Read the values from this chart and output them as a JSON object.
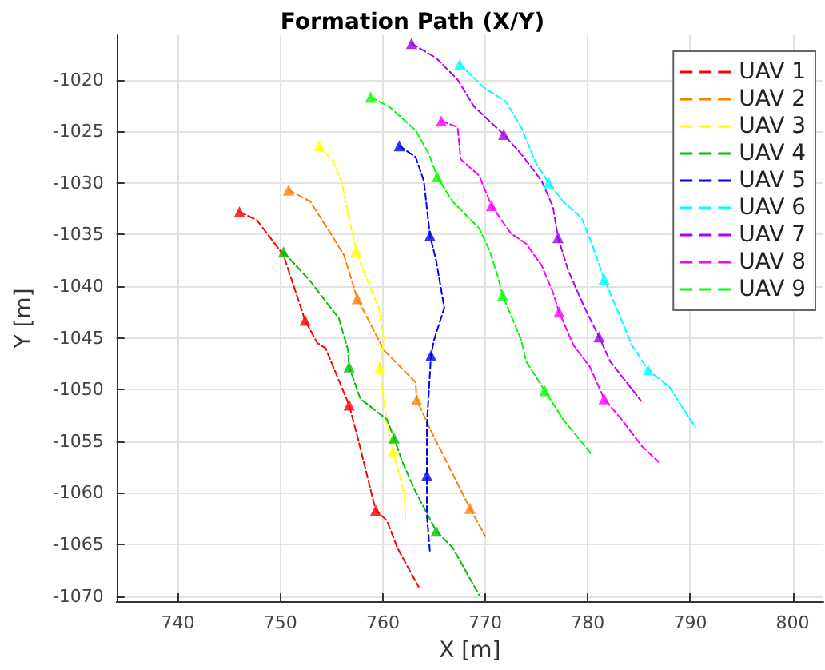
{
  "chart_data": {
    "type": "line",
    "title": "Formation Path (X/Y)",
    "xlabel": "X [m]",
    "ylabel": "Y [m]",
    "xlim": [
      734,
      803
    ],
    "xticks": [
      740,
      750,
      760,
      770,
      780,
      790,
      800
    ],
    "ylim": [
      -1070.5,
      -1015.7
    ],
    "yticks": [
      -1070,
      -1065,
      -1060,
      -1055,
      -1050,
      -1045,
      -1040,
      -1035,
      -1030,
      -1025,
      -1020
    ],
    "grid": true,
    "legend": "top right",
    "line_style": "dashed",
    "series": [
      {
        "name": "UAV 1",
        "marker": "none",
        "color": "#ff0000",
        "x": [
          746.0,
          747.7,
          750.3,
          752.4,
          753.6,
          754.4,
          756.7,
          757.5,
          759.3,
          760.4,
          761.4,
          763.2,
          763.5
        ],
        "values": [
          -1032.8,
          -1033.6,
          -1037.0,
          -1043.3,
          -1045.5,
          -1046.0,
          -1051.5,
          -1054.5,
          -1061.7,
          -1062.7,
          -1065.3,
          -1068.6,
          -1069.1
        ]
      },
      {
        "name": "UAV 2",
        "marker": "none",
        "color": "#ff8000",
        "x": [
          750.8,
          752.9,
          754.9,
          756.2,
          757.5,
          758.5,
          760.1,
          763.2,
          763.3,
          764.7,
          767.8,
          768.5,
          770.0
        ],
        "values": [
          -1030.7,
          -1031.8,
          -1034.9,
          -1037.0,
          -1041.2,
          -1043.1,
          -1046.2,
          -1049.3,
          -1051.0,
          -1054.0,
          -1060.1,
          -1061.5,
          -1064.2
        ]
      },
      {
        "name": "UAV 3",
        "marker": "none",
        "color": "#ffff00",
        "x": [
          753.8,
          755.2,
          756.0,
          756.7,
          757.4,
          758.3,
          759.6,
          760.1,
          759.7,
          760.4,
          761.0,
          762.1,
          762.2
        ],
        "values": [
          -1026.4,
          -1028.0,
          -1030.0,
          -1033.4,
          -1036.6,
          -1039.0,
          -1042.1,
          -1045.2,
          -1047.9,
          -1053.4,
          -1056.0,
          -1060.1,
          -1062.7
        ]
      },
      {
        "name": "UAV 4",
        "marker": "none",
        "color": "#00c000",
        "x": [
          750.3,
          752.9,
          754.9,
          755.7,
          756.6,
          756.7,
          757.8,
          760.4,
          761.1,
          761.9,
          763.2,
          765.2,
          766.8,
          769.4
        ],
        "values": [
          -1036.7,
          -1039.5,
          -1042.1,
          -1043.1,
          -1046.2,
          -1047.8,
          -1050.9,
          -1052.9,
          -1054.7,
          -1057.0,
          -1059.9,
          -1063.7,
          -1065.3,
          -1069.9
        ]
      },
      {
        "name": "UAV 5",
        "marker": "none",
        "color": "#0000ff",
        "x": [
          761.6,
          763.2,
          764.0,
          764.6,
          765.2,
          766.0,
          765.0,
          764.7,
          764.3,
          764.3,
          764.3,
          764.6
        ],
        "values": [
          -1026.4,
          -1027.5,
          -1029.8,
          -1035.1,
          -1037.5,
          -1042.1,
          -1045.2,
          -1046.7,
          -1053.4,
          -1058.3,
          -1062.2,
          -1065.8
        ]
      },
      {
        "name": "UAV 6",
        "marker": "none",
        "color": "#00ffff",
        "x": [
          767.5,
          769.9,
          772.0,
          773.5,
          775.0,
          776.2,
          777.6,
          779.4,
          780.4,
          781.6,
          782.8,
          784.3,
          785.9,
          788.0,
          790.0,
          790.5
        ],
        "values": [
          -1018.5,
          -1020.8,
          -1022.1,
          -1024.6,
          -1028.2,
          -1030.0,
          -1031.8,
          -1033.4,
          -1035.9,
          -1039.3,
          -1042.1,
          -1045.7,
          -1048.1,
          -1049.8,
          -1052.9,
          -1053.6
        ]
      },
      {
        "name": "UAV 7",
        "marker": "none",
        "color": "#b000ff",
        "x": [
          762.8,
          765.2,
          767.3,
          768.9,
          771.8,
          773.5,
          775.5,
          776.6,
          777.1,
          778.1,
          779.7,
          781.1,
          782.2,
          785.2
        ],
        "values": [
          -1016.5,
          -1017.9,
          -1020.0,
          -1022.6,
          -1025.3,
          -1027.2,
          -1029.8,
          -1032.3,
          -1035.3,
          -1038.5,
          -1042.1,
          -1044.9,
          -1047.3,
          -1051.1
        ]
      },
      {
        "name": "UAV 8",
        "marker": "none",
        "color": "#ff00ff",
        "x": [
          765.7,
          767.3,
          767.6,
          769.4,
          770.6,
          772.5,
          774.0,
          775.5,
          776.6,
          777.2,
          778.6,
          780.2,
          781.6,
          783.3,
          785.3,
          786.9
        ],
        "values": [
          -1024.0,
          -1024.6,
          -1027.7,
          -1029.3,
          -1032.2,
          -1034.9,
          -1035.9,
          -1038.0,
          -1040.6,
          -1042.5,
          -1045.7,
          -1047.8,
          -1050.9,
          -1052.9,
          -1055.5,
          -1057.0
        ]
      },
      {
        "name": "UAV 9",
        "marker": "none",
        "color": "#00ff00",
        "x": [
          758.8,
          760.6,
          763.2,
          764.5,
          765.3,
          766.8,
          769.4,
          770.4,
          771.2,
          771.7,
          773.5,
          774.0,
          775.8,
          777.6,
          780.4
        ],
        "values": [
          -1021.7,
          -1022.6,
          -1024.9,
          -1027.2,
          -1029.4,
          -1031.8,
          -1034.4,
          -1036.5,
          -1039.0,
          -1040.9,
          -1045.2,
          -1047.3,
          -1050.1,
          -1052.9,
          -1056.3
        ]
      },
      {
        "type": "scatter",
        "marker": "triangle",
        "color": "#ff0000",
        "x": [
          746.0,
          752.4,
          756.7,
          759.3
        ],
        "values": [
          -1032.8,
          -1043.3,
          -1051.5,
          -1061.7
        ]
      },
      {
        "type": "scatter",
        "marker": "triangle",
        "color": "#ff8000",
        "x": [
          750.8,
          757.5,
          763.3,
          768.5
        ],
        "values": [
          -1030.7,
          -1041.2,
          -1051.0,
          -1061.5
        ]
      },
      {
        "type": "scatter",
        "marker": "triangle",
        "color": "#ffff00",
        "x": [
          753.8,
          757.4,
          759.7,
          761.0
        ],
        "values": [
          -1026.4,
          -1036.6,
          -1047.9,
          -1056.0
        ]
      },
      {
        "type": "scatter",
        "marker": "triangle",
        "color": "#00c000",
        "x": [
          750.3,
          756.7,
          761.1,
          765.2
        ],
        "values": [
          -1036.7,
          -1047.8,
          -1054.7,
          -1063.7
        ]
      },
      {
        "type": "scatter",
        "marker": "triangle",
        "color": "#0000ff",
        "x": [
          761.6,
          764.6,
          764.7,
          764.3
        ],
        "values": [
          -1026.4,
          -1035.1,
          -1046.7,
          -1058.3
        ]
      },
      {
        "type": "scatter",
        "marker": "triangle",
        "color": "#00ffff",
        "x": [
          767.5,
          776.2,
          781.6,
          785.9
        ],
        "values": [
          -1018.5,
          -1030.0,
          -1039.3,
          -1048.1
        ]
      },
      {
        "type": "scatter",
        "marker": "triangle",
        "color": "#9900dd",
        "x": [
          762.8,
          771.8,
          777.1,
          781.1
        ],
        "values": [
          -1016.5,
          -1025.3,
          -1035.3,
          -1044.9
        ]
      },
      {
        "type": "scatter",
        "marker": "triangle",
        "color": "#ff00ff",
        "x": [
          765.7,
          770.6,
          777.2,
          781.6
        ],
        "values": [
          -1024.0,
          -1032.2,
          -1042.5,
          -1050.9
        ]
      },
      {
        "type": "scatter",
        "marker": "triangle",
        "color": "#00ff00",
        "x": [
          758.8,
          765.3,
          771.7,
          775.8
        ],
        "values": [
          -1021.7,
          -1029.4,
          -1040.9,
          -1050.1
        ]
      }
    ]
  }
}
